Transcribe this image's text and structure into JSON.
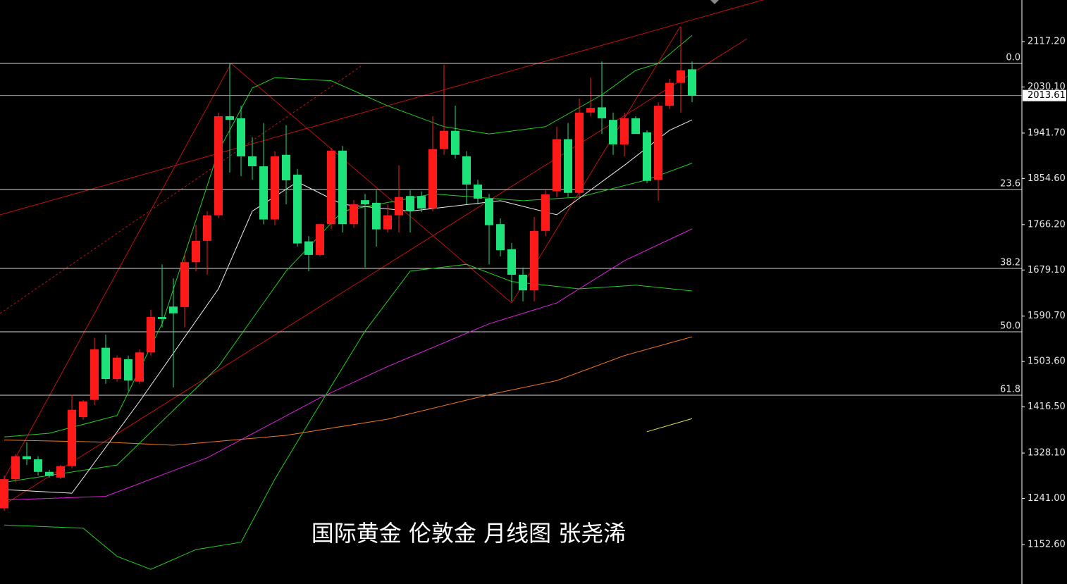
{
  "chart_data": {
    "type": "candlestick",
    "title": "国际黄金 伦敦金 月线图  张尧浠",
    "categories": [
      null,
      null,
      null,
      null,
      null,
      null,
      null,
      null,
      null,
      null,
      null,
      null,
      null,
      null,
      null,
      null,
      null,
      null,
      null,
      null,
      null,
      null,
      null,
      null,
      null,
      null,
      null,
      null,
      null,
      null,
      null,
      null,
      null,
      null,
      null,
      null,
      null,
      null,
      null,
      null,
      null,
      null,
      null,
      null,
      null,
      null,
      null,
      null,
      null,
      null,
      null,
      null,
      null,
      null,
      null,
      null,
      null,
      null,
      null,
      null,
      null,
      null
    ],
    "open": [
      1222,
      1278,
      1322,
      1316,
      1292,
      1281,
      1303,
      1397,
      1430,
      1530,
      1470,
      1508,
      1465,
      1521,
      1589,
      1609,
      1608,
      1694,
      1735,
      1784,
      1974,
      1970,
      1897,
      1878,
      1776,
      1900,
      1862,
      1734,
      1708,
      1767,
      1908,
      1767,
      1813,
      1808,
      1757,
      1784,
      1821,
      1821,
      1797,
      1911,
      1946,
      1897,
      1843,
      1816,
      1767,
      1719,
      1670,
      1640,
      1754,
      1830,
      1930,
      1827,
      1981,
      1991,
      1967,
      1920,
      1970,
      1943,
      1852,
      1994,
      2038,
      2064
    ],
    "high": [
      1285,
      1326,
      1349,
      1322,
      1296,
      1305,
      1440,
      1430,
      1549,
      1555,
      1515,
      1515,
      1527,
      1603,
      1690,
      1663,
      1711,
      1765,
      1792,
      1981,
      2075,
      1994,
      1934,
      1961,
      1907,
      1957,
      1873,
      1744,
      1767,
      1913,
      1917,
      1813,
      1825,
      1832,
      1805,
      1880,
      1832,
      1830,
      1974,
      2073,
      1994,
      1907,
      1852,
      1825,
      1778,
      1731,
      1684,
      1781,
      1832,
      1954,
      1961,
      2008,
      2048,
      2079,
      1981,
      1981,
      1974,
      1947,
      2001,
      2046,
      2146,
      2079
    ],
    "low": [
      1217,
      1272,
      1305,
      1285,
      1281,
      1278,
      1299,
      1392,
      1420,
      1461,
      1465,
      1447,
      1461,
      1515,
      1569,
      1454,
      1569,
      1677,
      1670,
      1778,
      1866,
      1859,
      1852,
      1767,
      1765,
      1805,
      1724,
      1677,
      1705,
      1758,
      1751,
      1760,
      1684,
      1724,
      1751,
      1751,
      1751,
      1790,
      1792,
      1900,
      1893,
      1805,
      1805,
      1690,
      1705,
      1619,
      1619,
      1619,
      1744,
      1819,
      1819,
      1819,
      1974,
      1940,
      1900,
      1897,
      1940,
      1846,
      1812,
      1988,
      1981,
      2001
    ],
    "close": [
      1278,
      1322,
      1316,
      1292,
      1284,
      1303,
      1411,
      1427,
      1527,
      1470,
      1511,
      1467,
      1521,
      1589,
      1585,
      1596,
      1694,
      1735,
      1784,
      1974,
      1967,
      1897,
      1878,
      1776,
      1897,
      1851,
      1730,
      1708,
      1767,
      1908,
      1767,
      1805,
      1805,
      1757,
      1784,
      1819,
      1792,
      1797,
      1911,
      1946,
      1900,
      1843,
      1816,
      1765,
      1717,
      1670,
      1640,
      1754,
      1824,
      1930,
      1827,
      1981,
      1990,
      1970,
      1920,
      1970,
      1940,
      1850,
      1994,
      2038,
      2062,
      2013.61
    ],
    "up_color": "#ff1a1a",
    "down_color": "#1ee27a",
    "ylim": [
      1076.9,
      2196.9
    ],
    "yticks": [
      {
        "value": 2117.2,
        "label": "2117.20"
      },
      {
        "value": 2030.1,
        "label": "2030.10"
      },
      {
        "value": 1941.7,
        "label": "1941.70"
      },
      {
        "value": 1854.6,
        "label": "1854.60"
      },
      {
        "value": 1766.2,
        "label": "1766.20"
      },
      {
        "value": 1679.1,
        "label": "1679.10"
      },
      {
        "value": 1590.7,
        "label": "1590.70"
      },
      {
        "value": 1503.6,
        "label": "1503.60"
      },
      {
        "value": 1416.5,
        "label": "1416.50"
      },
      {
        "value": 1328.1,
        "label": "1328.10"
      },
      {
        "value": 1241,
        "label": "1241.00"
      },
      {
        "value": 1152.6,
        "label": "1152.60"
      }
    ],
    "last_price": 2013.61,
    "fib_levels": [
      {
        "value": 2075.3,
        "label": "0.0"
      },
      {
        "value": 1833.5,
        "label": "23.6"
      },
      {
        "value": 1682.2,
        "label": "38.2"
      },
      {
        "value": 1560.6,
        "label": "50.0"
      },
      {
        "value": 1439,
        "label": "61.8"
      }
    ],
    "lines": [
      {
        "color": "#e020e0",
        "x": [
          0,
          9,
          18,
          28,
          34,
          43,
          49,
          55,
          61
        ],
        "values": [
          1238,
          1245,
          1319,
          1434,
          1494,
          1576,
          1616,
          1697,
          1758
        ]
      },
      {
        "color": "#f07820",
        "x": [
          0,
          9,
          15,
          25,
          34,
          43,
          49,
          55,
          61
        ],
        "values": [
          1353,
          1349,
          1343,
          1362,
          1393,
          1440,
          1467,
          1515,
          1551
        ]
      },
      {
        "color": "#e8e840",
        "x": [
          57,
          61
        ],
        "values": [
          1369,
          1394
        ]
      },
      {
        "color": "#20d020",
        "x": [
          0,
          4,
          10,
          14,
          19,
          22,
          24,
          29,
          34,
          39,
          43,
          48,
          53,
          56,
          58,
          61
        ],
        "values": [
          1359,
          1366,
          1400,
          1576,
          1907,
          2028,
          2048,
          2042,
          1994,
          1954,
          1940,
          1954,
          2015,
          2062,
          2075,
          2129
        ]
      },
      {
        "color": "#20d020",
        "x": [
          0,
          7,
          10,
          13,
          17,
          21,
          24,
          27,
          32,
          36,
          41,
          45,
          51,
          56,
          61
        ],
        "values": [
          1190,
          1184,
          1130,
          1105,
          1143,
          1157,
          1278,
          1386,
          1562,
          1677,
          1690,
          1657,
          1643,
          1650,
          1639
        ]
      },
      {
        "color": "#20d020",
        "x": [
          0,
          10,
          19,
          25,
          30,
          38,
          46,
          51,
          57,
          61
        ],
        "values": [
          1272,
          1305,
          1494,
          1677,
          1792,
          1825,
          1812,
          1819,
          1852,
          1884
        ]
      },
      {
        "color": "#f0f0f0",
        "x": [
          0,
          6,
          12,
          19,
          22,
          26,
          30,
          36,
          44,
          49,
          55,
          59,
          61
        ],
        "values": [
          1258,
          1251,
          1427,
          1643,
          1792,
          1848,
          1805,
          1792,
          1812,
          1785,
          1880,
          1947,
          1967
        ]
      }
    ]
  }
}
